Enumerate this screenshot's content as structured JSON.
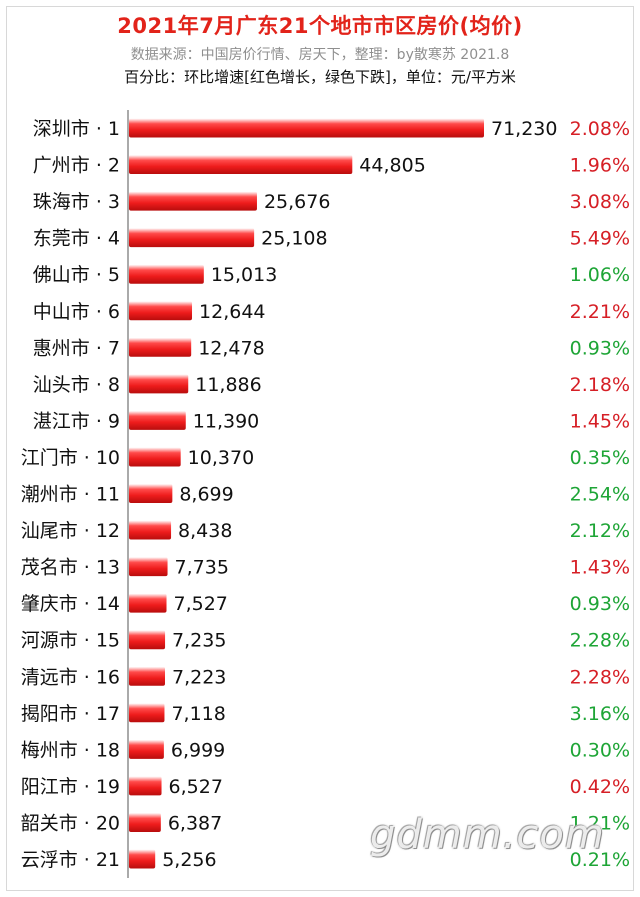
{
  "title": "2021年7月广东21个地市市区房价(均价)",
  "subtitle": "数据来源：中国房价行情、房天下，整理：by散寒苏 2021.8",
  "note": "百分比：环比增速[红色增长，绿色下跌]，单位：元/平方米",
  "watermark": "gdmm.com",
  "colors": {
    "bar": "#ee1c1c",
    "up": "#d61f26",
    "down": "#1ea536",
    "title": "#e2231a"
  },
  "chart_data": {
    "type": "bar",
    "orientation": "horizontal",
    "categories": [
      "深圳市 · 1",
      "广州市 · 2",
      "珠海市 · 3",
      "东莞市 · 4",
      "佛山市 · 5",
      "中山市 · 6",
      "惠州市 · 7",
      "汕头市 · 8",
      "湛江市 · 9",
      "江门市 · 10",
      "潮州市 · 11",
      "汕尾市 · 12",
      "茂名市 · 13",
      "肇庆市 · 14",
      "河源市 · 15",
      "清远市 · 16",
      "揭阳市 · 17",
      "梅州市 · 18",
      "阳江市 · 19",
      "韶关市 · 20",
      "云浮市 · 21"
    ],
    "values": [
      71230,
      44805,
      25676,
      25108,
      15013,
      12644,
      12478,
      11886,
      11390,
      10370,
      8699,
      8438,
      7735,
      7527,
      7235,
      7223,
      7118,
      6999,
      6527,
      6387,
      5256
    ],
    "value_labels": [
      "71,230",
      "44,805",
      "25,676",
      "25,108",
      "15,013",
      "12,644",
      "12,478",
      "11,886",
      "11,390",
      "10,370",
      "8,699",
      "8,438",
      "7,735",
      "7,527",
      "7,235",
      "7,223",
      "7,118",
      "6,999",
      "6,527",
      "6,387",
      "5,256"
    ],
    "pct_labels": [
      "2.08%",
      "1.96%",
      "3.08%",
      "5.49%",
      "1.06%",
      "2.21%",
      "0.93%",
      "2.18%",
      "1.45%",
      "0.35%",
      "2.54%",
      "2.12%",
      "1.43%",
      "0.93%",
      "2.28%",
      "2.28%",
      "3.16%",
      "0.30%",
      "0.42%",
      "1.21%",
      "0.21%"
    ],
    "pct_direction": [
      "up",
      "up",
      "up",
      "up",
      "down",
      "up",
      "down",
      "up",
      "up",
      "down",
      "down",
      "down",
      "up",
      "down",
      "down",
      "up",
      "down",
      "down",
      "up",
      "down",
      "down"
    ],
    "xlim": [
      0,
      71230
    ]
  }
}
